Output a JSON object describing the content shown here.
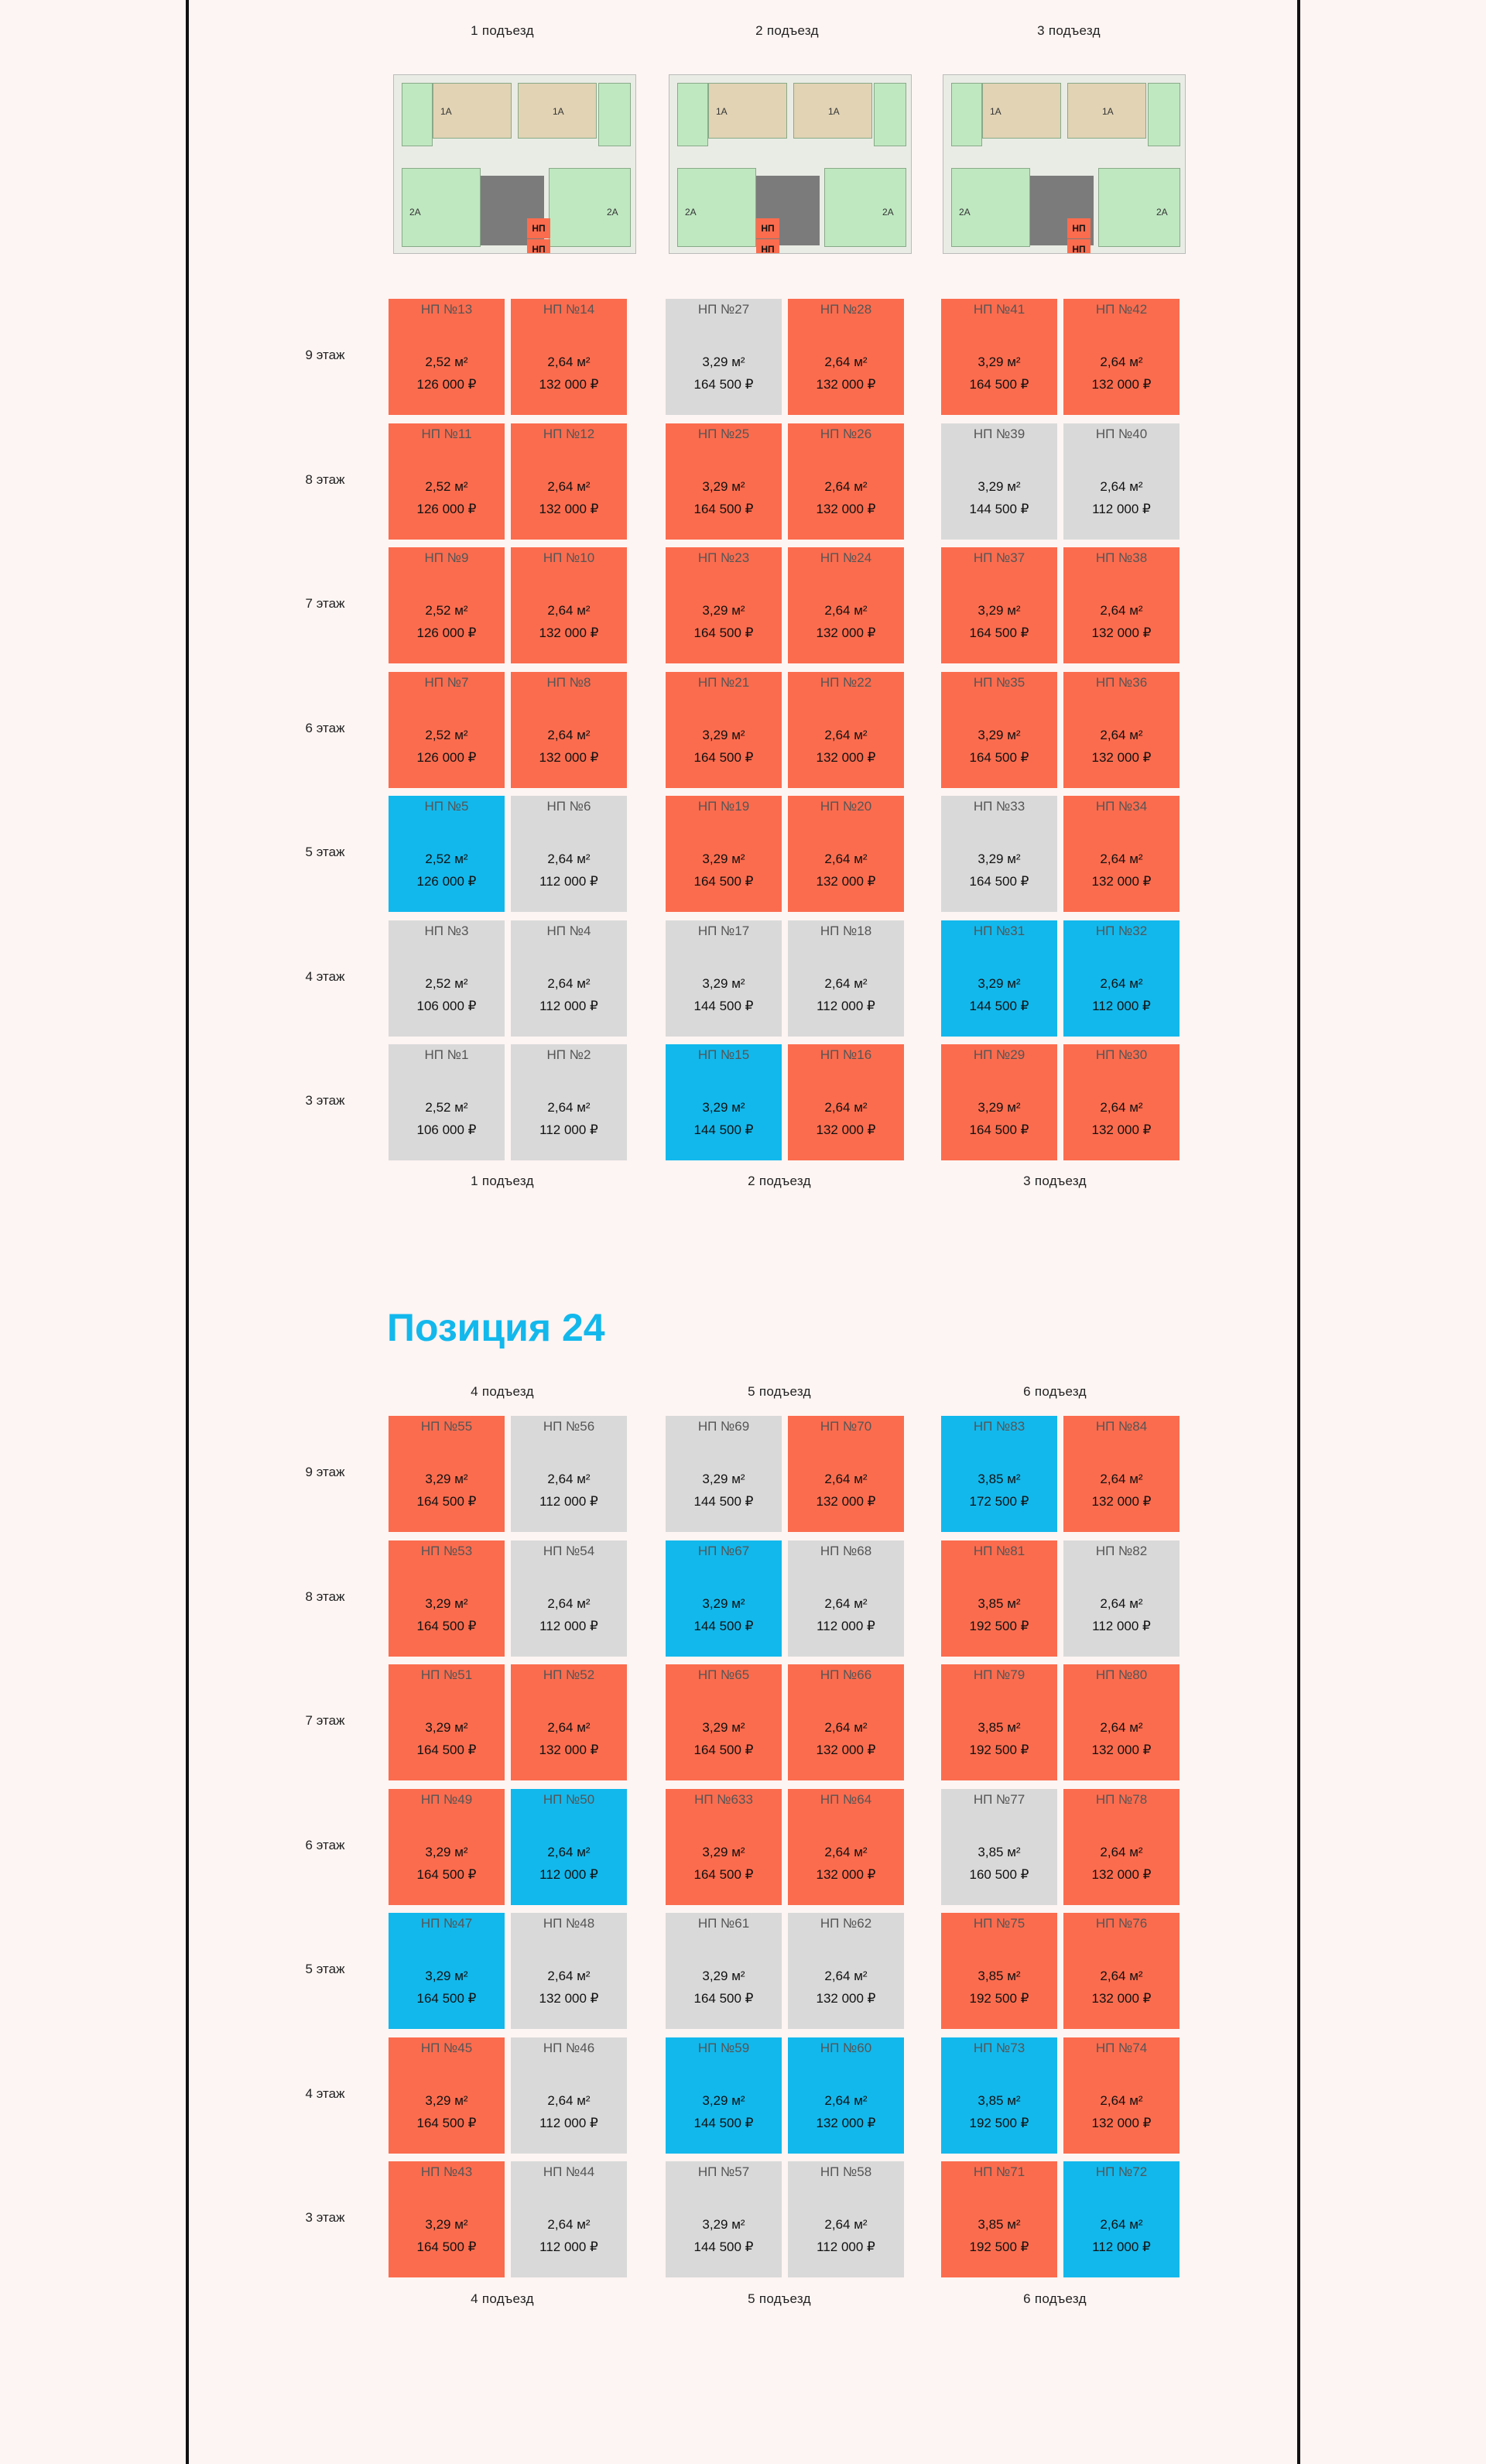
{
  "position_title": "Позиция 24",
  "plan_label": "НП",
  "plan_apartments": [
    "1А",
    "1А",
    "2А",
    "2А"
  ],
  "colors": {
    "sold": "#fb6c4e",
    "available": "#d9d9d9",
    "reserved": "#12b8ec",
    "accent": "#12b8ec"
  },
  "floors": [
    "9 этаж",
    "8 этаж",
    "7 этаж",
    "6 этаж",
    "5 этаж",
    "4 этаж",
    "3 этаж"
  ],
  "blocks": [
    {
      "entrances": [
        {
          "label": "1 подъезд",
          "cells": [
            [
              {
                "num": "НП №13",
                "area": "2,52 м²",
                "price": "126 000 ₽",
                "status": "sold"
              },
              {
                "num": "НП №14",
                "area": "2,64 м²",
                "price": "132 000 ₽",
                "status": "sold"
              }
            ],
            [
              {
                "num": "НП №11",
                "area": "2,52 м²",
                "price": "126 000 ₽",
                "status": "sold"
              },
              {
                "num": "НП №12",
                "area": "2,64 м²",
                "price": "132 000 ₽",
                "status": "sold"
              }
            ],
            [
              {
                "num": "НП №9",
                "area": "2,52 м²",
                "price": "126 000 ₽",
                "status": "sold"
              },
              {
                "num": "НП №10",
                "area": "2,64 м²",
                "price": "132 000 ₽",
                "status": "sold"
              }
            ],
            [
              {
                "num": "НП №7",
                "area": "2,52 м²",
                "price": "126 000 ₽",
                "status": "sold"
              },
              {
                "num": "НП №8",
                "area": "2,64 м²",
                "price": "132 000 ₽",
                "status": "sold"
              }
            ],
            [
              {
                "num": "НП №5",
                "area": "2,52 м²",
                "price": "126 000 ₽",
                "status": "reserved"
              },
              {
                "num": "НП №6",
                "area": "2,64 м²",
                "price": "112 000 ₽",
                "status": "avail"
              }
            ],
            [
              {
                "num": "НП №3",
                "area": "2,52 м²",
                "price": "106 000 ₽",
                "status": "avail"
              },
              {
                "num": "НП №4",
                "area": "2,64 м²",
                "price": "112 000 ₽",
                "status": "avail"
              }
            ],
            [
              {
                "num": "НП №1",
                "area": "2,52 м²",
                "price": "106 000 ₽",
                "status": "avail"
              },
              {
                "num": "НП №2",
                "area": "2,64 м²",
                "price": "112 000 ₽",
                "status": "avail"
              }
            ]
          ]
        },
        {
          "label": "2 подъезд",
          "cells": [
            [
              {
                "num": "НП №27",
                "area": "3,29 м²",
                "price": "164 500 ₽",
                "status": "avail"
              },
              {
                "num": "НП №28",
                "area": "2,64 м²",
                "price": "132 000 ₽",
                "status": "sold"
              }
            ],
            [
              {
                "num": "НП №25",
                "area": "3,29 м²",
                "price": "164 500 ₽",
                "status": "sold"
              },
              {
                "num": "НП №26",
                "area": "2,64 м²",
                "price": "132 000 ₽",
                "status": "sold"
              }
            ],
            [
              {
                "num": "НП №23",
                "area": "3,29 м²",
                "price": "164 500 ₽",
                "status": "sold"
              },
              {
                "num": "НП №24",
                "area": "2,64 м²",
                "price": "132 000 ₽",
                "status": "sold"
              }
            ],
            [
              {
                "num": "НП №21",
                "area": "3,29 м²",
                "price": "164 500 ₽",
                "status": "sold"
              },
              {
                "num": "НП №22",
                "area": "2,64 м²",
                "price": "132 000 ₽",
                "status": "sold"
              }
            ],
            [
              {
                "num": "НП №19",
                "area": "3,29 м²",
                "price": "164 500 ₽",
                "status": "sold"
              },
              {
                "num": "НП №20",
                "area": "2,64 м²",
                "price": "132 000 ₽",
                "status": "sold"
              }
            ],
            [
              {
                "num": "НП №17",
                "area": "3,29 м²",
                "price": "144 500 ₽",
                "status": "avail"
              },
              {
                "num": "НП №18",
                "area": "2,64 м²",
                "price": "112 000 ₽",
                "status": "avail"
              }
            ],
            [
              {
                "num": "НП №15",
                "area": "3,29 м²",
                "price": "144 500 ₽",
                "status": "reserved"
              },
              {
                "num": "НП №16",
                "area": "2,64 м²",
                "price": "132 000 ₽",
                "status": "sold"
              }
            ]
          ]
        },
        {
          "label": "3 подъезд",
          "cells": [
            [
              {
                "num": "НП №41",
                "area": "3,29 м²",
                "price": "164 500 ₽",
                "status": "sold"
              },
              {
                "num": "НП №42",
                "area": "2,64 м²",
                "price": "132 000 ₽",
                "status": "sold"
              }
            ],
            [
              {
                "num": "НП №39",
                "area": "3,29 м²",
                "price": "144 500 ₽",
                "status": "avail"
              },
              {
                "num": "НП №40",
                "area": "2,64 м²",
                "price": "112 000 ₽",
                "status": "avail"
              }
            ],
            [
              {
                "num": "НП №37",
                "area": "3,29 м²",
                "price": "164 500 ₽",
                "status": "sold"
              },
              {
                "num": "НП №38",
                "area": "2,64 м²",
                "price": "132 000 ₽",
                "status": "sold"
              }
            ],
            [
              {
                "num": "НП №35",
                "area": "3,29 м²",
                "price": "164 500 ₽",
                "status": "sold"
              },
              {
                "num": "НП №36",
                "area": "2,64 м²",
                "price": "132 000 ₽",
                "status": "sold"
              }
            ],
            [
              {
                "num": "НП №33",
                "area": "3,29 м²",
                "price": "164 500 ₽",
                "status": "avail"
              },
              {
                "num": "НП №34",
                "area": "2,64 м²",
                "price": "132 000 ₽",
                "status": "sold"
              }
            ],
            [
              {
                "num": "НП №31",
                "area": "3,29 м²",
                "price": "144 500 ₽",
                "status": "reserved"
              },
              {
                "num": "НП №32",
                "area": "2,64 м²",
                "price": "112 000 ₽",
                "status": "reserved"
              }
            ],
            [
              {
                "num": "НП №29",
                "area": "3,29 м²",
                "price": "164 500 ₽",
                "status": "sold"
              },
              {
                "num": "НП №30",
                "area": "2,64 м²",
                "price": "132 000 ₽",
                "status": "sold"
              }
            ]
          ]
        }
      ]
    },
    {
      "entrances": [
        {
          "label": "4 подъезд",
          "cells": [
            [
              {
                "num": "НП №55",
                "area": "3,29 м²",
                "price": "164 500 ₽",
                "status": "sold"
              },
              {
                "num": "НП №56",
                "area": "2,64 м²",
                "price": "112 000 ₽",
                "status": "avail"
              }
            ],
            [
              {
                "num": "НП №53",
                "area": "3,29 м²",
                "price": "164 500 ₽",
                "status": "sold"
              },
              {
                "num": "НП №54",
                "area": "2,64 м²",
                "price": "112 000 ₽",
                "status": "avail"
              }
            ],
            [
              {
                "num": "НП №51",
                "area": "3,29 м²",
                "price": "164 500 ₽",
                "status": "sold"
              },
              {
                "num": "НП №52",
                "area": "2,64 м²",
                "price": "132 000 ₽",
                "status": "sold"
              }
            ],
            [
              {
                "num": "НП №49",
                "area": "3,29 м²",
                "price": "164 500 ₽",
                "status": "sold"
              },
              {
                "num": "НП №50",
                "area": "2,64 м²",
                "price": "112 000 ₽",
                "status": "reserved"
              }
            ],
            [
              {
                "num": "НП №47",
                "area": "3,29 м²",
                "price": "164 500 ₽",
                "status": "reserved"
              },
              {
                "num": "НП №48",
                "area": "2,64 м²",
                "price": "132 000 ₽",
                "status": "avail"
              }
            ],
            [
              {
                "num": "НП №45",
                "area": "3,29 м²",
                "price": "164 500 ₽",
                "status": "sold"
              },
              {
                "num": "НП №46",
                "area": "2,64 м²",
                "price": "112 000 ₽",
                "status": "avail"
              }
            ],
            [
              {
                "num": "НП №43",
                "area": "3,29 м²",
                "price": "164 500 ₽",
                "status": "sold"
              },
              {
                "num": "НП №44",
                "area": "2,64 м²",
                "price": "112 000 ₽",
                "status": "avail"
              }
            ]
          ]
        },
        {
          "label": "5 подъезд",
          "cells": [
            [
              {
                "num": "НП №69",
                "area": "3,29 м²",
                "price": "144 500 ₽",
                "status": "avail"
              },
              {
                "num": "НП №70",
                "area": "2,64 м²",
                "price": "132 000 ₽",
                "status": "sold"
              }
            ],
            [
              {
                "num": "НП №67",
                "area": "3,29 м²",
                "price": "144 500 ₽",
                "status": "reserved"
              },
              {
                "num": "НП №68",
                "area": "2,64 м²",
                "price": "112 000 ₽",
                "status": "avail"
              }
            ],
            [
              {
                "num": "НП №65",
                "area": "3,29 м²",
                "price": "164 500 ₽",
                "status": "sold"
              },
              {
                "num": "НП №66",
                "area": "2,64 м²",
                "price": "132 000 ₽",
                "status": "sold"
              }
            ],
            [
              {
                "num": "НП №633",
                "area": "3,29 м²",
                "price": "164 500 ₽",
                "status": "sold"
              },
              {
                "num": "НП №64",
                "area": "2,64 м²",
                "price": "132 000 ₽",
                "status": "sold"
              }
            ],
            [
              {
                "num": "НП №61",
                "area": "3,29 м²",
                "price": "164 500 ₽",
                "status": "avail"
              },
              {
                "num": "НП №62",
                "area": "2,64 м²",
                "price": "132 000 ₽",
                "status": "avail"
              }
            ],
            [
              {
                "num": "НП №59",
                "area": "3,29 м²",
                "price": "144 500 ₽",
                "status": "reserved"
              },
              {
                "num": "НП №60",
                "area": "2,64 м²",
                "price": "132 000 ₽",
                "status": "reserved"
              }
            ],
            [
              {
                "num": "НП №57",
                "area": "3,29 м²",
                "price": "144 500 ₽",
                "status": "avail"
              },
              {
                "num": "НП №58",
                "area": "2,64 м²",
                "price": "112 000 ₽",
                "status": "avail"
              }
            ]
          ]
        },
        {
          "label": "6 подъезд",
          "cells": [
            [
              {
                "num": "НП №83",
                "area": "3,85 м²",
                "price": "172 500 ₽",
                "status": "reserved"
              },
              {
                "num": "НП №84",
                "area": "2,64 м²",
                "price": "132 000 ₽",
                "status": "sold"
              }
            ],
            [
              {
                "num": "НП №81",
                "area": "3,85 м²",
                "price": "192 500 ₽",
                "status": "sold"
              },
              {
                "num": "НП №82",
                "area": "2,64 м²",
                "price": "112 000 ₽",
                "status": "avail"
              }
            ],
            [
              {
                "num": "НП №79",
                "area": "3,85 м²",
                "price": "192 500 ₽",
                "status": "sold"
              },
              {
                "num": "НП №80",
                "area": "2,64 м²",
                "price": "132 000 ₽",
                "status": "sold"
              }
            ],
            [
              {
                "num": "НП №77",
                "area": "3,85 м²",
                "price": "160 500 ₽",
                "status": "avail"
              },
              {
                "num": "НП №78",
                "area": "2,64 м²",
                "price": "132 000 ₽",
                "status": "sold"
              }
            ],
            [
              {
                "num": "НП №75",
                "area": "3,85 м²",
                "price": "192 500 ₽",
                "status": "sold"
              },
              {
                "num": "НП №76",
                "area": "2,64 м²",
                "price": "132 000 ₽",
                "status": "sold"
              }
            ],
            [
              {
                "num": "НП №73",
                "area": "3,85 м²",
                "price": "192 500 ₽",
                "status": "reserved"
              },
              {
                "num": "НП №74",
                "area": "2,64 м²",
                "price": "132 000 ₽",
                "status": "sold"
              }
            ],
            [
              {
                "num": "НП №71",
                "area": "3,85 м²",
                "price": "192 500 ₽",
                "status": "sold"
              },
              {
                "num": "НП №72",
                "area": "2,64 м²",
                "price": "112 000 ₽",
                "status": "reserved"
              }
            ]
          ]
        }
      ]
    }
  ]
}
